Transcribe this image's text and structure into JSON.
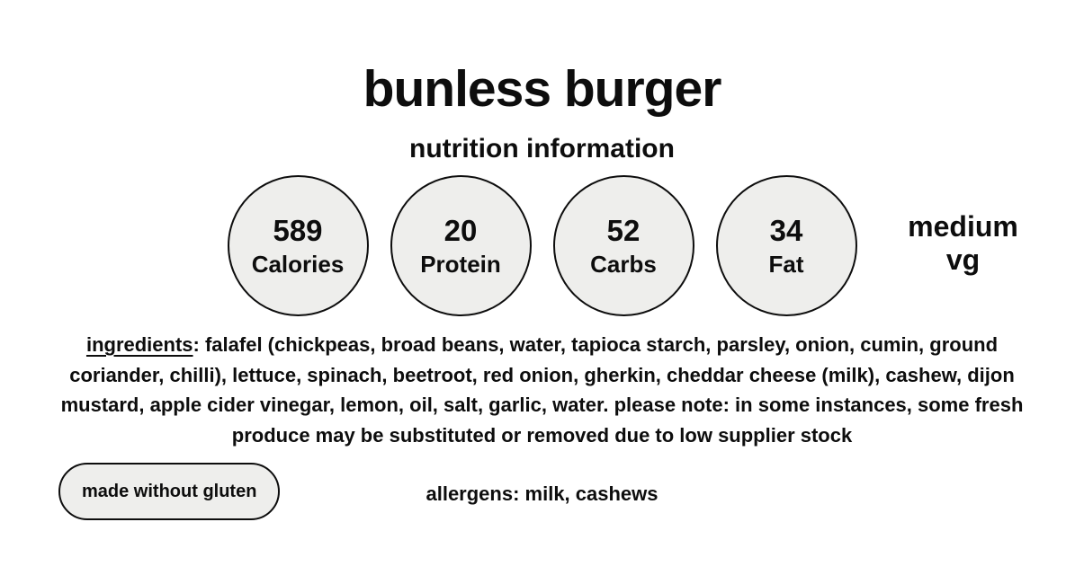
{
  "header": {
    "title": "bunless burger",
    "subtitle": "nutrition information"
  },
  "macros": [
    {
      "value": "589",
      "label": "Calories"
    },
    {
      "value": "20",
      "label": "Protein"
    },
    {
      "value": "52",
      "label": "Carbs"
    },
    {
      "value": "34",
      "label": "Fat"
    }
  ],
  "diet": {
    "line1": "medium",
    "line2": "vg"
  },
  "ingredients": {
    "label": "ingredients",
    "text": ": falafel (chickpeas, broad beans, water, tapioca starch, parsley, onion, cumin, ground coriander, chilli),  lettuce, spinach, beetroot, red onion, gherkin, cheddar cheese (milk), cashew, dijon mustard, apple cider vinegar, lemon, oil, salt, garlic, water. please note: in some instances, some fresh produce may be substituted or removed due to low supplier stock"
  },
  "badge": {
    "label": "made without gluten"
  },
  "allergens": {
    "text": "allergens: milk, cashews"
  },
  "colors": {
    "background": "#ffffff",
    "circle_fill": "#eeeeec",
    "border": "#0d0d0d",
    "text": "#0d0d0d"
  }
}
